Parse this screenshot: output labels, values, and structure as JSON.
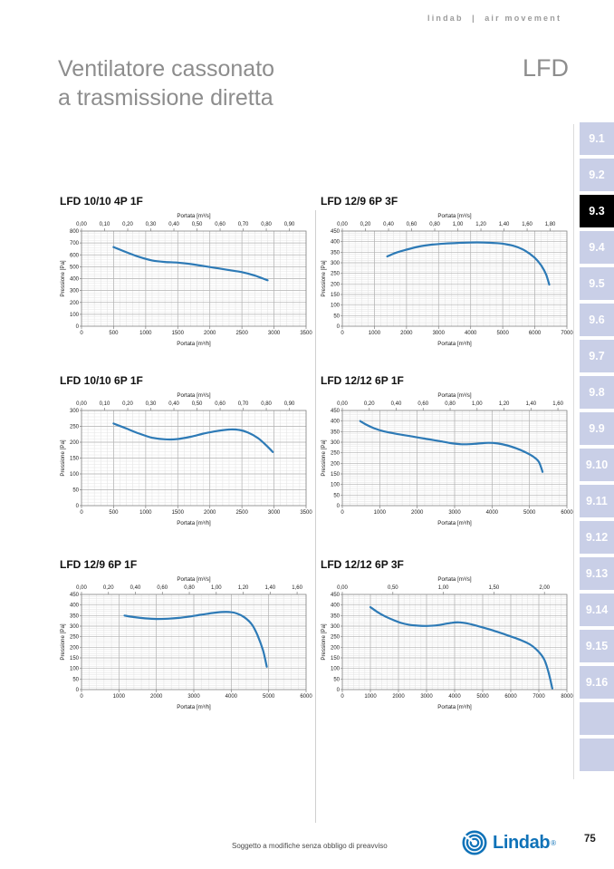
{
  "header": {
    "brand": "lindab  |  air movement",
    "title_line1": "Ventilatore cassonato",
    "title_line2": "a trasmissione diretta",
    "product_code": "LFD"
  },
  "sidebar": {
    "active": "9.3",
    "tabs": [
      "9.1",
      "9.2",
      "9.3",
      "9.4",
      "9.5",
      "9.6",
      "9.7",
      "9.8",
      "9.9",
      "9.10",
      "9.11",
      "9.12",
      "9.13",
      "9.14",
      "9.15",
      "9.16",
      "",
      ""
    ]
  },
  "footer": {
    "disclaimer": "Soggetto a modifiche senza obbligo di preavviso",
    "logo_text": "Lindab",
    "registered": "®",
    "page_number": "75"
  },
  "colors": {
    "curve_blue": "#2d7ab6",
    "tab_bg": "#c9cfe7",
    "tab_active_bg": "#000000",
    "logo_blue": "#0f72b8",
    "title_gray": "#8d8d8d"
  },
  "chart_data": [
    {
      "type": "line",
      "title": "LFD 10/10 4P 1F",
      "top_axis": {
        "label": "Portata [m³/s]",
        "ticks": [
          "0,00",
          "0,10",
          "0,20",
          "0,30",
          "0,40",
          "0,50",
          "0,60",
          "0,70",
          "0,80",
          "0,90"
        ]
      },
      "x_axis": {
        "label": "Portata [m³/h]",
        "ticks": [
          0,
          500,
          1000,
          1500,
          2000,
          2500,
          3000,
          3500
        ],
        "max": 3500,
        "minor": 100
      },
      "y_axis": {
        "label": "Pressione [Pa]",
        "ticks": [
          0,
          100,
          200,
          300,
          400,
          500,
          600,
          700,
          800
        ],
        "max": 800,
        "minor": 20
      },
      "series": [
        {
          "name": "LFD 10/10 4P 1F",
          "color": "#2d7ab6",
          "points": [
            [
              500,
              665
            ],
            [
              700,
              622
            ],
            [
              900,
              582
            ],
            [
              1100,
              553
            ],
            [
              1300,
              540
            ],
            [
              1500,
              535
            ],
            [
              1700,
              523
            ],
            [
              1900,
              506
            ],
            [
              2100,
              489
            ],
            [
              2300,
              472
            ],
            [
              2500,
              455
            ],
            [
              2700,
              426
            ],
            [
              2900,
              386
            ]
          ]
        }
      ]
    },
    {
      "type": "line",
      "title": "LFD 12/9 6P 3F",
      "top_axis": {
        "label": "Portata [m³/s]",
        "ticks": [
          "0,00",
          "0,20",
          "0,40",
          "0,60",
          "0,80",
          "1,00",
          "1,20",
          "1,40",
          "1,60",
          "1,80"
        ]
      },
      "x_axis": {
        "label": "Portata [m³/h]",
        "ticks": [
          0,
          1000,
          2000,
          3000,
          4000,
          5000,
          6000,
          7000
        ],
        "max": 7000,
        "minor": 200
      },
      "y_axis": {
        "label": "Pressione [Pa]",
        "ticks": [
          0,
          50,
          100,
          150,
          200,
          250,
          300,
          350,
          400,
          450
        ],
        "max": 450,
        "minor": 10
      },
      "series": [
        {
          "name": "LFD 12/9 6P 3F",
          "color": "#2d7ab6",
          "points": [
            [
              1400,
              330
            ],
            [
              1700,
              349
            ],
            [
              2000,
              362
            ],
            [
              2400,
              377
            ],
            [
              2800,
              386
            ],
            [
              3200,
              391
            ],
            [
              3600,
              394
            ],
            [
              4000,
              396
            ],
            [
              4400,
              396
            ],
            [
              4800,
              393
            ],
            [
              5100,
              388
            ],
            [
              5400,
              377
            ],
            [
              5700,
              357
            ],
            [
              6000,
              323
            ],
            [
              6200,
              287
            ],
            [
              6350,
              245
            ],
            [
              6450,
              197
            ]
          ]
        }
      ]
    },
    {
      "type": "line",
      "title": "LFD 10/10 6P 1F",
      "top_axis": {
        "label": "Portata [m³/s]",
        "ticks": [
          "0,00",
          "0,10",
          "0,20",
          "0,30",
          "0,40",
          "0,50",
          "0,60",
          "0,70",
          "0,80",
          "0,90"
        ]
      },
      "x_axis": {
        "label": "Portata [m³/h]",
        "ticks": [
          0,
          500,
          1000,
          1500,
          2000,
          2500,
          3000,
          3500
        ],
        "max": 3500,
        "minor": 100
      },
      "y_axis": {
        "label": "Pressione [Pa]",
        "ticks": [
          0,
          50,
          100,
          150,
          200,
          250,
          300
        ],
        "max": 300,
        "minor": 10
      },
      "series": [
        {
          "name": "LFD 10/10 6P 1F",
          "color": "#2d7ab6",
          "points": [
            [
              500,
              259
            ],
            [
              700,
              243
            ],
            [
              900,
              227
            ],
            [
              1100,
              214
            ],
            [
              1300,
              209
            ],
            [
              1500,
              210
            ],
            [
              1700,
              217
            ],
            [
              1900,
              227
            ],
            [
              2100,
              235
            ],
            [
              2300,
              240
            ],
            [
              2450,
              239
            ],
            [
              2600,
              230
            ],
            [
              2750,
              213
            ],
            [
              2900,
              186
            ],
            [
              2980,
              169
            ]
          ]
        }
      ]
    },
    {
      "type": "line",
      "title": "LFD 12/12 6P 1F",
      "top_axis": {
        "label": "Portata [m³/s]",
        "ticks": [
          "0,00",
          "0,20",
          "0,40",
          "0,60",
          "0,80",
          "1,00",
          "1,20",
          "1,40",
          "1,60"
        ]
      },
      "x_axis": {
        "label": "Portata [m³/h]",
        "ticks": [
          0,
          1000,
          2000,
          3000,
          4000,
          5000,
          6000
        ],
        "max": 6000,
        "minor": 200
      },
      "y_axis": {
        "label": "Pressione [Pa]",
        "ticks": [
          0,
          50,
          100,
          150,
          200,
          250,
          300,
          350,
          400,
          450
        ],
        "max": 450,
        "minor": 10
      },
      "series": [
        {
          "name": "LFD 12/12 6P 1F",
          "color": "#2d7ab6",
          "points": [
            [
              480,
              400
            ],
            [
              650,
              382
            ],
            [
              850,
              366
            ],
            [
              1100,
              352
            ],
            [
              1400,
              341
            ],
            [
              1800,
              329
            ],
            [
              2200,
              317
            ],
            [
              2600,
              305
            ],
            [
              2950,
              294
            ],
            [
              3250,
              290
            ],
            [
              3600,
              293
            ],
            [
              3900,
              297
            ],
            [
              4150,
              294
            ],
            [
              4400,
              285
            ],
            [
              4650,
              271
            ],
            [
              4900,
              252
            ],
            [
              5100,
              232
            ],
            [
              5250,
              207
            ],
            [
              5350,
              160
            ]
          ]
        }
      ]
    },
    {
      "type": "line",
      "title": "LFD 12/9 6P 1F",
      "top_axis": {
        "label": "Portata [m³/s]",
        "ticks": [
          "0,00",
          "0,20",
          "0,40",
          "0,60",
          "0,80",
          "1,00",
          "1,20",
          "1,40",
          "1,60"
        ]
      },
      "x_axis": {
        "label": "Portata [m³/h]",
        "ticks": [
          0,
          1000,
          2000,
          3000,
          4000,
          5000,
          6000
        ],
        "max": 6000,
        "minor": 200
      },
      "y_axis": {
        "label": "Pressione [Pa]",
        "ticks": [
          0,
          50,
          100,
          150,
          200,
          250,
          300,
          350,
          400,
          450
        ],
        "max": 450,
        "minor": 10
      },
      "series": [
        {
          "name": "LFD 12/9 6P 1F",
          "color": "#2d7ab6",
          "points": [
            [
              1150,
              350
            ],
            [
              1400,
              343
            ],
            [
              1700,
              337
            ],
            [
              2000,
              334
            ],
            [
              2300,
              335
            ],
            [
              2600,
              339
            ],
            [
              2900,
              346
            ],
            [
              3200,
              354
            ],
            [
              3500,
              362
            ],
            [
              3750,
              367
            ],
            [
              3950,
              367
            ],
            [
              4150,
              360
            ],
            [
              4350,
              342
            ],
            [
              4550,
              308
            ],
            [
              4700,
              258
            ],
            [
              4850,
              185
            ],
            [
              4950,
              108
            ]
          ]
        }
      ]
    },
    {
      "type": "line",
      "title": "LFD 12/12 6P 3F",
      "top_axis": {
        "label": "Portata [m³/s]",
        "ticks": [
          "0,00",
          "0,50",
          "1,00",
          "1,50",
          "2,00"
        ]
      },
      "x_axis": {
        "label": "Portata [m³/h]",
        "ticks": [
          0,
          1000,
          2000,
          3000,
          4000,
          5000,
          6000,
          7000,
          8000
        ],
        "max": 8000,
        "minor": 200
      },
      "y_axis": {
        "label": "Pressione [Pa]",
        "ticks": [
          0,
          50,
          100,
          150,
          200,
          250,
          300,
          350,
          400,
          450
        ],
        "max": 450,
        "minor": 10
      },
      "series": [
        {
          "name": "LFD 12/12 6P 3F",
          "color": "#2d7ab6",
          "points": [
            [
              1000,
              390
            ],
            [
              1250,
              367
            ],
            [
              1500,
              348
            ],
            [
              1800,
              330
            ],
            [
              2100,
              315
            ],
            [
              2400,
              306
            ],
            [
              2700,
              302
            ],
            [
              3000,
              301
            ],
            [
              3300,
              303
            ],
            [
              3600,
              309
            ],
            [
              3900,
              316
            ],
            [
              4150,
              318
            ],
            [
              4400,
              314
            ],
            [
              4700,
              305
            ],
            [
              5100,
              290
            ],
            [
              5500,
              274
            ],
            [
              5900,
              256
            ],
            [
              6300,
              237
            ],
            [
              6700,
              212
            ],
            [
              7000,
              178
            ],
            [
              7200,
              140
            ],
            [
              7350,
              80
            ],
            [
              7480,
              5
            ]
          ]
        }
      ]
    }
  ]
}
